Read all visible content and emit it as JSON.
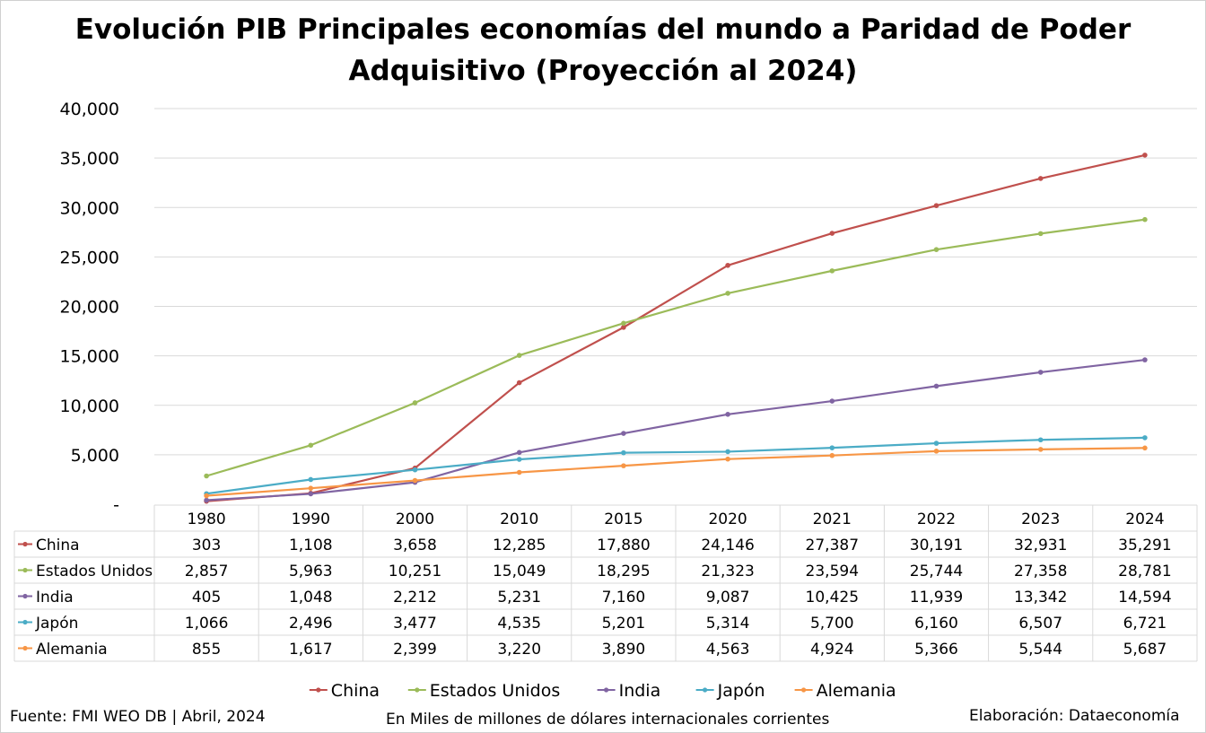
{
  "title": {
    "line1": "Evolución PIB Principales economías del mundo a Paridad de Poder",
    "line2": "Adquisitivo (Proyección al 2024)"
  },
  "footer": {
    "source": "Fuente: FMI WEO DB | Abril, 2024",
    "units": "En Miles de millones de dólares internacionales corrientes",
    "credit": "Elaboración: Dataeconomía"
  },
  "chart_data": {
    "type": "line",
    "title": "Evolución PIB Principales economías del mundo a Paridad de Poder Adquisitivo (Proyección al 2024)",
    "categories": [
      "1980",
      "1990",
      "2000",
      "2010",
      "2015",
      "2020",
      "2021",
      "2022",
      "2023",
      "2024"
    ],
    "y_ticks": [
      "-",
      "5,000",
      "10,000",
      "15,000",
      "20,000",
      "25,000",
      "30,000",
      "35,000",
      "40,000"
    ],
    "ylim": [
      0,
      40000
    ],
    "grid": true,
    "legend": "bottom",
    "data_table": true,
    "series": [
      {
        "name": "China",
        "color": "#c0504d",
        "values": [
          303,
          1108,
          3658,
          12285,
          17880,
          24146,
          27387,
          30191,
          32931,
          35291
        ],
        "labels": [
          "303",
          "1,108",
          "3,658",
          "12,285",
          "17,880",
          "24,146",
          "27,387",
          "30,191",
          "32,931",
          "35,291"
        ]
      },
      {
        "name": "Estados Unidos",
        "color": "#9bbb59",
        "values": [
          2857,
          5963,
          10251,
          15049,
          18295,
          21323,
          23594,
          25744,
          27358,
          28781
        ],
        "labels": [
          "2,857",
          "5,963",
          "10,251",
          "15,049",
          "18,295",
          "21,323",
          "23,594",
          "25,744",
          "27,358",
          "28,781"
        ]
      },
      {
        "name": "India",
        "color": "#8064a2",
        "values": [
          405,
          1048,
          2212,
          5231,
          7160,
          9087,
          10425,
          11939,
          13342,
          14594
        ],
        "labels": [
          "405",
          "1,048",
          "2,212",
          "5,231",
          "7,160",
          "9,087",
          "10,425",
          "11,939",
          "13,342",
          "14,594"
        ]
      },
      {
        "name": "Japón",
        "color": "#4bacc6",
        "values": [
          1066,
          2496,
          3477,
          4535,
          5201,
          5314,
          5700,
          6160,
          6507,
          6721
        ],
        "labels": [
          "1,066",
          "2,496",
          "3,477",
          "4,535",
          "5,201",
          "5,314",
          "5,700",
          "6,160",
          "6,507",
          "6,721"
        ]
      },
      {
        "name": "Alemania",
        "color": "#f79646",
        "values": [
          855,
          1617,
          2399,
          3220,
          3890,
          4563,
          4924,
          5366,
          5544,
          5687
        ],
        "labels": [
          "855",
          "1,617",
          "2,399",
          "3,220",
          "3,890",
          "4,563",
          "4,924",
          "5,366",
          "5,544",
          "5,687"
        ]
      }
    ]
  }
}
